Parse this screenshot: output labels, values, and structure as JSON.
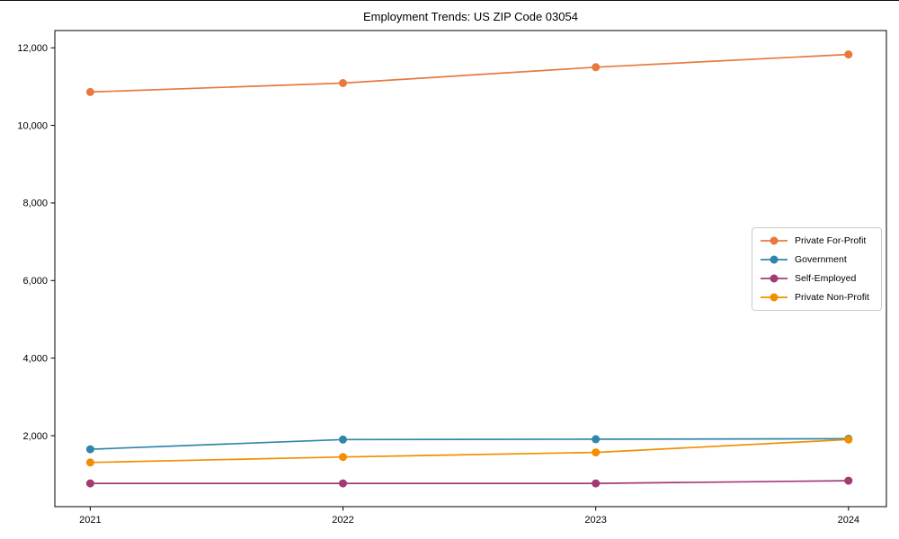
{
  "chart_data": {
    "type": "line",
    "title": "Employment Trends: US ZIP Code 03054",
    "x": [
      2021,
      2022,
      2023,
      2024
    ],
    "x_tick_labels": [
      "2021",
      "2022",
      "2023",
      "2024"
    ],
    "y_ticks": [
      2000,
      4000,
      6000,
      8000,
      10000,
      12000
    ],
    "y_tick_labels": [
      "2,000",
      "4,000",
      "6,000",
      "8,000",
      "10,000",
      "12,000"
    ],
    "xlim": [
      2020.86,
      2024.15
    ],
    "ylim": [
      170,
      12445
    ],
    "grid": false,
    "legend_position": "center-right",
    "xlabel": "",
    "ylabel": "",
    "series": [
      {
        "name": "Private For-Profit",
        "color": "#e8793e",
        "values": [
          10860,
          11090,
          11500,
          11830
        ]
      },
      {
        "name": "Government",
        "color": "#2e86ab",
        "values": [
          1650,
          1900,
          1910,
          1920
        ]
      },
      {
        "name": "Self-Employed",
        "color": "#a23b72",
        "values": [
          770,
          770,
          770,
          840
        ]
      },
      {
        "name": "Private Non-Profit",
        "color": "#f18f01",
        "values": [
          1310,
          1450,
          1570,
          1900
        ]
      }
    ]
  }
}
